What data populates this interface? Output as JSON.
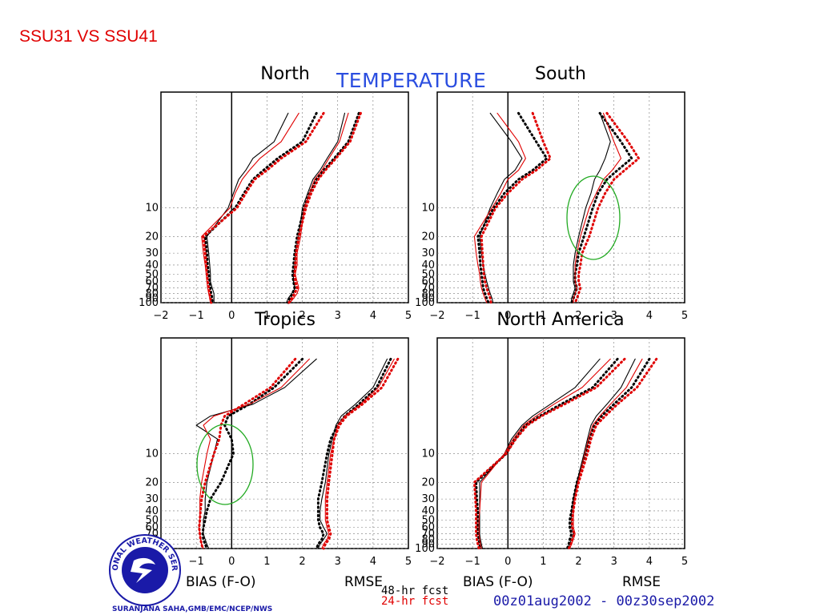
{
  "slide_title": "SSU31 VS SSU41",
  "main_title": "TEMPERATURE",
  "footer": {
    "bias_label": "BIAS (F-O)",
    "rmse_label": "RMSE",
    "legend_48": "48-hr fcst",
    "legend_24": "24-hr fcst",
    "date_range": "00z01aug2002 - 00z30sep2002",
    "credit": "SURANJANA SAHA,GMB/EMC/NCEP/NWS",
    "logo_text": "NATIONAL WEATHER SERVICE"
  },
  "colors": {
    "title_red": "#e00000",
    "title_blue": "#2b4ee0",
    "series_black": "#000000",
    "series_red": "#e00000",
    "circle_green": "#22aa22",
    "logo_blue": "#1a1aa8"
  },
  "chart_data": [
    {
      "type": "line",
      "title": "North",
      "xlim": [
        -2,
        5
      ],
      "x_ticks": [
        -2,
        -1,
        0,
        1,
        2,
        3,
        4,
        5
      ],
      "y_axis": "log",
      "y_tick_labels": [
        "10",
        "20",
        "30",
        "40",
        "50",
        "60",
        "70",
        "80",
        "90",
        "100"
      ],
      "levels": [
        1,
        2,
        3,
        4,
        5,
        7,
        10,
        20,
        30,
        40,
        50,
        60,
        70,
        80,
        90,
        100
      ],
      "series": [
        {
          "line": "solid-black",
          "bias": [
            1.6,
            1.2,
            0.6,
            0.4,
            0.2,
            0.05,
            -0.1,
            -0.7,
            -0.65,
            -0.62,
            -0.6,
            -0.6,
            -0.55,
            -0.5,
            -0.5,
            -0.5
          ],
          "rmse": [
            3.2,
            3.0,
            2.7,
            2.5,
            2.3,
            2.15,
            2.0,
            1.9,
            1.8,
            1.8,
            1.75,
            1.75,
            1.8,
            1.7,
            1.6,
            1.55
          ]
        },
        {
          "line": "dotted-black",
          "bias": [
            2.4,
            2.0,
            1.3,
            0.9,
            0.6,
            0.35,
            0.1,
            -0.75,
            -0.7,
            -0.68,
            -0.65,
            -0.62,
            -0.6,
            -0.58,
            -0.55,
            -0.55
          ],
          "rmse": [
            3.6,
            3.3,
            2.9,
            2.6,
            2.4,
            2.2,
            2.05,
            1.85,
            1.78,
            1.75,
            1.72,
            1.75,
            1.78,
            1.72,
            1.65,
            1.6
          ]
        },
        {
          "line": "solid-red",
          "bias": [
            1.9,
            1.4,
            0.8,
            0.5,
            0.3,
            0.1,
            -0.05,
            -0.85,
            -0.8,
            -0.75,
            -0.72,
            -0.7,
            -0.68,
            -0.65,
            -0.62,
            -0.6
          ],
          "rmse": [
            3.3,
            3.05,
            2.75,
            2.55,
            2.35,
            2.2,
            2.05,
            1.95,
            1.85,
            1.85,
            1.8,
            1.85,
            1.9,
            1.85,
            1.75,
            1.65
          ]
        },
        {
          "line": "dotted-red",
          "bias": [
            2.6,
            2.1,
            1.4,
            1.0,
            0.65,
            0.4,
            0.15,
            -0.8,
            -0.75,
            -0.72,
            -0.7,
            -0.68,
            -0.65,
            -0.62,
            -0.6,
            -0.58
          ],
          "rmse": [
            3.65,
            3.35,
            2.95,
            2.65,
            2.45,
            2.25,
            2.1,
            1.9,
            1.82,
            1.8,
            1.78,
            1.8,
            1.85,
            1.78,
            1.7,
            1.62
          ]
        }
      ]
    },
    {
      "type": "line",
      "title": "South",
      "xlim": [
        -2,
        5
      ],
      "x_ticks": [
        -2,
        -1,
        0,
        1,
        2,
        3,
        4,
        5
      ],
      "y_axis": "log",
      "y_tick_labels": [
        "10",
        "20",
        "30",
        "40",
        "50",
        "60",
        "70",
        "80",
        "90",
        "100"
      ],
      "levels": [
        1,
        2,
        3,
        4,
        5,
        7,
        10,
        20,
        30,
        40,
        50,
        60,
        70,
        80,
        90,
        100
      ],
      "series": [
        {
          "line": "solid-black",
          "bias": [
            -0.5,
            0.1,
            0.4,
            0.2,
            -0.1,
            -0.3,
            -0.5,
            -0.8,
            -0.75,
            -0.7,
            -0.65,
            -0.6,
            -0.55,
            -0.5,
            -0.45,
            -0.42
          ],
          "rmse": [
            2.6,
            2.9,
            2.75,
            2.6,
            2.45,
            2.35,
            2.2,
            2.0,
            1.9,
            1.85,
            1.85,
            1.85,
            1.9,
            1.85,
            1.8,
            1.8
          ]
        },
        {
          "line": "dotted-black",
          "bias": [
            0.3,
            0.8,
            1.1,
            0.7,
            0.3,
            -0.1,
            -0.4,
            -0.85,
            -0.8,
            -0.78,
            -0.75,
            -0.72,
            -0.7,
            -0.65,
            -0.6,
            -0.55
          ],
          "rmse": [
            2.6,
            3.2,
            3.5,
            3.1,
            2.8,
            2.55,
            2.4,
            2.15,
            2.0,
            1.95,
            1.9,
            1.9,
            1.95,
            1.9,
            1.85,
            1.8
          ]
        },
        {
          "line": "solid-red",
          "bias": [
            -0.3,
            0.3,
            0.5,
            0.3,
            0.0,
            -0.2,
            -0.45,
            -0.95,
            -0.9,
            -0.85,
            -0.8,
            -0.78,
            -0.75,
            -0.7,
            -0.65,
            -0.6
          ],
          "rmse": [
            2.7,
            3.0,
            3.2,
            2.95,
            2.7,
            2.5,
            2.3,
            2.05,
            1.95,
            1.9,
            1.9,
            1.9,
            1.95,
            1.9,
            1.85,
            1.85
          ]
        },
        {
          "line": "dotted-red",
          "bias": [
            0.7,
            1.0,
            1.2,
            0.8,
            0.4,
            0.0,
            -0.35,
            -0.75,
            -0.72,
            -0.7,
            -0.68,
            -0.65,
            -0.6,
            -0.55,
            -0.5,
            -0.48
          ],
          "rmse": [
            2.8,
            3.4,
            3.7,
            3.3,
            3.0,
            2.75,
            2.55,
            2.3,
            2.1,
            2.05,
            2.0,
            2.0,
            2.05,
            2.0,
            1.95,
            1.9
          ]
        }
      ]
    },
    {
      "type": "line",
      "title": "Tropics",
      "xlim": [
        -2,
        5
      ],
      "x_ticks": [
        -2,
        -1,
        0,
        1,
        2,
        3,
        4,
        5
      ],
      "y_axis": "log",
      "y_tick_labels": [
        "10",
        "20",
        "30",
        "40",
        "50",
        "60",
        "70",
        "80",
        "90",
        "100"
      ],
      "levels": [
        1,
        2,
        3,
        4,
        5,
        7,
        10,
        20,
        30,
        40,
        50,
        60,
        70,
        80,
        90,
        100
      ],
      "series": [
        {
          "line": "solid-black",
          "bias": [
            2.4,
            1.5,
            0.6,
            -0.6,
            -1.0,
            -0.4,
            -0.5,
            -0.7,
            -0.75,
            -0.75,
            -0.8,
            -0.8,
            -0.8,
            -0.75,
            -0.7,
            -0.65
          ],
          "rmse": [
            4.4,
            4.0,
            3.5,
            3.1,
            2.95,
            2.85,
            2.75,
            2.65,
            2.55,
            2.5,
            2.5,
            2.6,
            2.7,
            2.6,
            2.5,
            2.45
          ]
        },
        {
          "line": "dotted-black",
          "bias": [
            2.0,
            1.2,
            0.5,
            -0.1,
            -0.2,
            0.0,
            0.05,
            -0.3,
            -0.6,
            -0.7,
            -0.75,
            -0.8,
            -0.82,
            -0.8,
            -0.75,
            -0.7
          ],
          "rmse": [
            4.5,
            4.1,
            3.6,
            3.2,
            3.0,
            2.8,
            2.7,
            2.55,
            2.45,
            2.45,
            2.45,
            2.5,
            2.6,
            2.55,
            2.45,
            2.4
          ]
        },
        {
          "line": "solid-red",
          "bias": [
            2.2,
            1.4,
            0.5,
            -0.5,
            -0.8,
            -0.6,
            -0.7,
            -0.85,
            -0.9,
            -0.9,
            -0.9,
            -0.92,
            -0.9,
            -0.88,
            -0.85,
            -0.8
          ],
          "rmse": [
            4.6,
            4.15,
            3.65,
            3.2,
            3.0,
            2.9,
            2.8,
            2.7,
            2.65,
            2.65,
            2.65,
            2.7,
            2.75,
            2.7,
            2.6,
            2.55
          ]
        },
        {
          "line": "dotted-red",
          "bias": [
            1.8,
            1.1,
            0.35,
            -0.2,
            -0.3,
            -0.35,
            -0.5,
            -0.75,
            -0.85,
            -0.88,
            -0.9,
            -0.92,
            -0.9,
            -0.88,
            -0.85,
            -0.82
          ],
          "rmse": [
            4.7,
            4.25,
            3.7,
            3.25,
            3.05,
            2.9,
            2.85,
            2.75,
            2.7,
            2.7,
            2.7,
            2.75,
            2.8,
            2.75,
            2.65,
            2.6
          ]
        }
      ]
    },
    {
      "type": "line",
      "title": "North America",
      "xlim": [
        -2,
        5
      ],
      "x_ticks": [
        -2,
        -1,
        0,
        1,
        2,
        3,
        4,
        5
      ],
      "y_axis": "log",
      "y_tick_labels": [
        "10",
        "20",
        "30",
        "40",
        "50",
        "60",
        "70",
        "80",
        "90",
        "100"
      ],
      "levels": [
        1,
        2,
        3,
        4,
        5,
        7,
        10,
        20,
        30,
        40,
        50,
        60,
        70,
        80,
        90,
        100
      ],
      "series": [
        {
          "line": "solid-black",
          "bias": [
            2.6,
            1.9,
            1.2,
            0.7,
            0.4,
            0.1,
            -0.1,
            -0.8,
            -0.8,
            -0.8,
            -0.8,
            -0.8,
            -0.8,
            -0.78,
            -0.75,
            -0.72
          ],
          "rmse": [
            3.6,
            3.2,
            2.8,
            2.5,
            2.35,
            2.25,
            2.15,
            1.95,
            1.85,
            1.8,
            1.8,
            1.8,
            1.85,
            1.8,
            1.75,
            1.7
          ]
        },
        {
          "line": "dotted-black",
          "bias": [
            3.1,
            2.4,
            1.5,
            0.9,
            0.5,
            0.2,
            -0.05,
            -0.9,
            -0.88,
            -0.85,
            -0.85,
            -0.85,
            -0.85,
            -0.82,
            -0.8,
            -0.78
          ],
          "rmse": [
            4.0,
            3.5,
            3.0,
            2.65,
            2.45,
            2.3,
            2.2,
            1.95,
            1.85,
            1.8,
            1.75,
            1.75,
            1.8,
            1.75,
            1.72,
            1.68
          ]
        },
        {
          "line": "solid-red",
          "bias": [
            2.9,
            2.1,
            1.3,
            0.8,
            0.45,
            0.15,
            -0.1,
            -0.75,
            -0.78,
            -0.8,
            -0.82,
            -0.82,
            -0.82,
            -0.8,
            -0.78,
            -0.75
          ],
          "rmse": [
            3.8,
            3.35,
            2.9,
            2.6,
            2.4,
            2.28,
            2.18,
            1.98,
            1.88,
            1.85,
            1.85,
            1.85,
            1.9,
            1.85,
            1.8,
            1.75
          ]
        },
        {
          "line": "dotted-red",
          "bias": [
            3.3,
            2.5,
            1.6,
            0.95,
            0.55,
            0.22,
            -0.05,
            -0.95,
            -0.92,
            -0.9,
            -0.9,
            -0.9,
            -0.9,
            -0.88,
            -0.85,
            -0.82
          ],
          "rmse": [
            4.2,
            3.65,
            3.1,
            2.75,
            2.5,
            2.35,
            2.25,
            2.0,
            1.9,
            1.85,
            1.82,
            1.82,
            1.88,
            1.82,
            1.78,
            1.72
          ]
        }
      ]
    }
  ]
}
